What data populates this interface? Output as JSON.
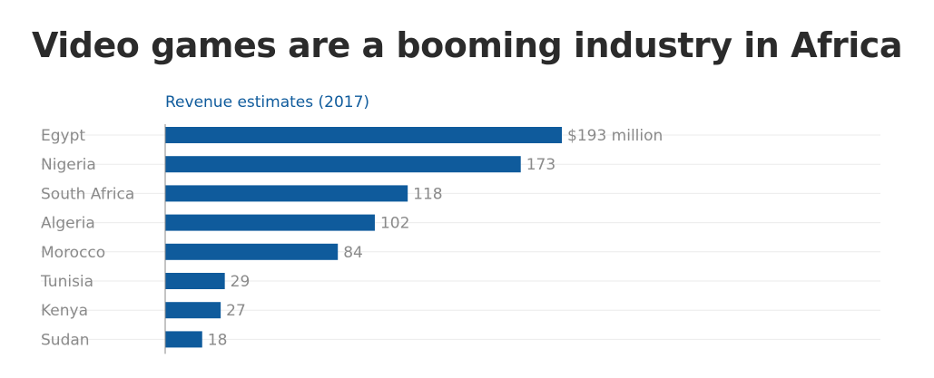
{
  "chart_data": {
    "type": "bar",
    "orientation": "horizontal",
    "title": "Video games are a booming industry in Africa",
    "subtitle": "Revenue estimates (2017)",
    "categories": [
      "Egypt",
      "Nigeria",
      "South Africa",
      "Algeria",
      "Morocco",
      "Tunisia",
      "Kenya",
      "Sudan"
    ],
    "values": [
      193,
      173,
      118,
      102,
      84,
      29,
      27,
      18
    ],
    "value_labels": [
      "$193 million",
      "173",
      "118",
      "102",
      "84",
      "29",
      "27",
      "18"
    ],
    "unit": "$ million",
    "xlim": [
      0,
      193
    ],
    "grid": true,
    "colors": {
      "bar": "#0f5b9c",
      "subtitle": "#0f5b9c",
      "label": "#8a8a8a",
      "grid": "#ebebeb",
      "axis": "#8a8a8a"
    }
  }
}
